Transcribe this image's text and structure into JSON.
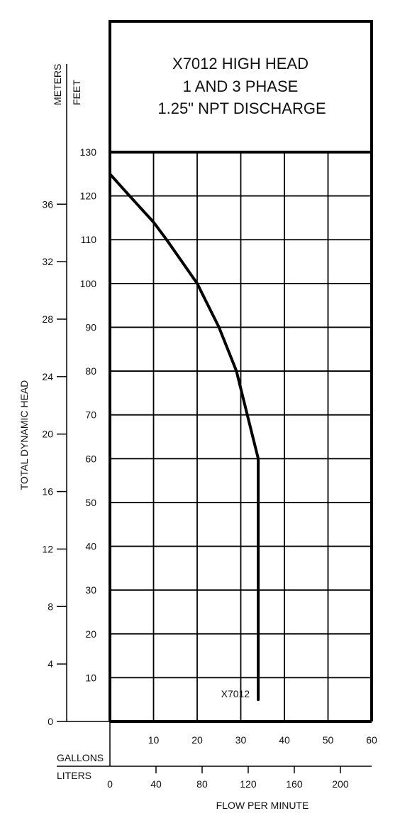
{
  "chart_data": {
    "type": "line",
    "title": [
      "X7012 HIGH HEAD",
      "1 AND 3 PHASE",
      "1.25\" NPT DISCHARGE"
    ],
    "ylabel": "TOTAL DYNAMIC HEAD",
    "y_unit_labels": {
      "meters": "METERS",
      "feet": "FEET"
    },
    "xlabel": "FLOW PER MINUTE",
    "x_unit_labels": {
      "gallons": "GALLONS",
      "liters": "LITERS"
    },
    "x_gallons_ticks": [
      10,
      20,
      30,
      40,
      50,
      60
    ],
    "x_liters_ticks": [
      0,
      40,
      80,
      120,
      160,
      200
    ],
    "y_feet_ticks": [
      10,
      20,
      30,
      40,
      50,
      60,
      70,
      80,
      90,
      100,
      110,
      120,
      130
    ],
    "y_meters_ticks": [
      0,
      4,
      8,
      12,
      16,
      20,
      24,
      28,
      32,
      36
    ],
    "xlim": [
      0,
      60
    ],
    "ylim": [
      0,
      130
    ],
    "grid": true,
    "series": [
      {
        "name": "X7012",
        "x": [
          0,
          4.5,
          10,
          13,
          20,
          25,
          29,
          31.5,
          34,
          34,
          34
        ],
        "y": [
          125,
          120,
          114,
          110,
          100,
          90,
          80,
          70,
          60,
          30,
          5
        ]
      }
    ],
    "colors": {
      "line": "#000000",
      "grid": "#000000",
      "background": "#ffffff"
    }
  }
}
